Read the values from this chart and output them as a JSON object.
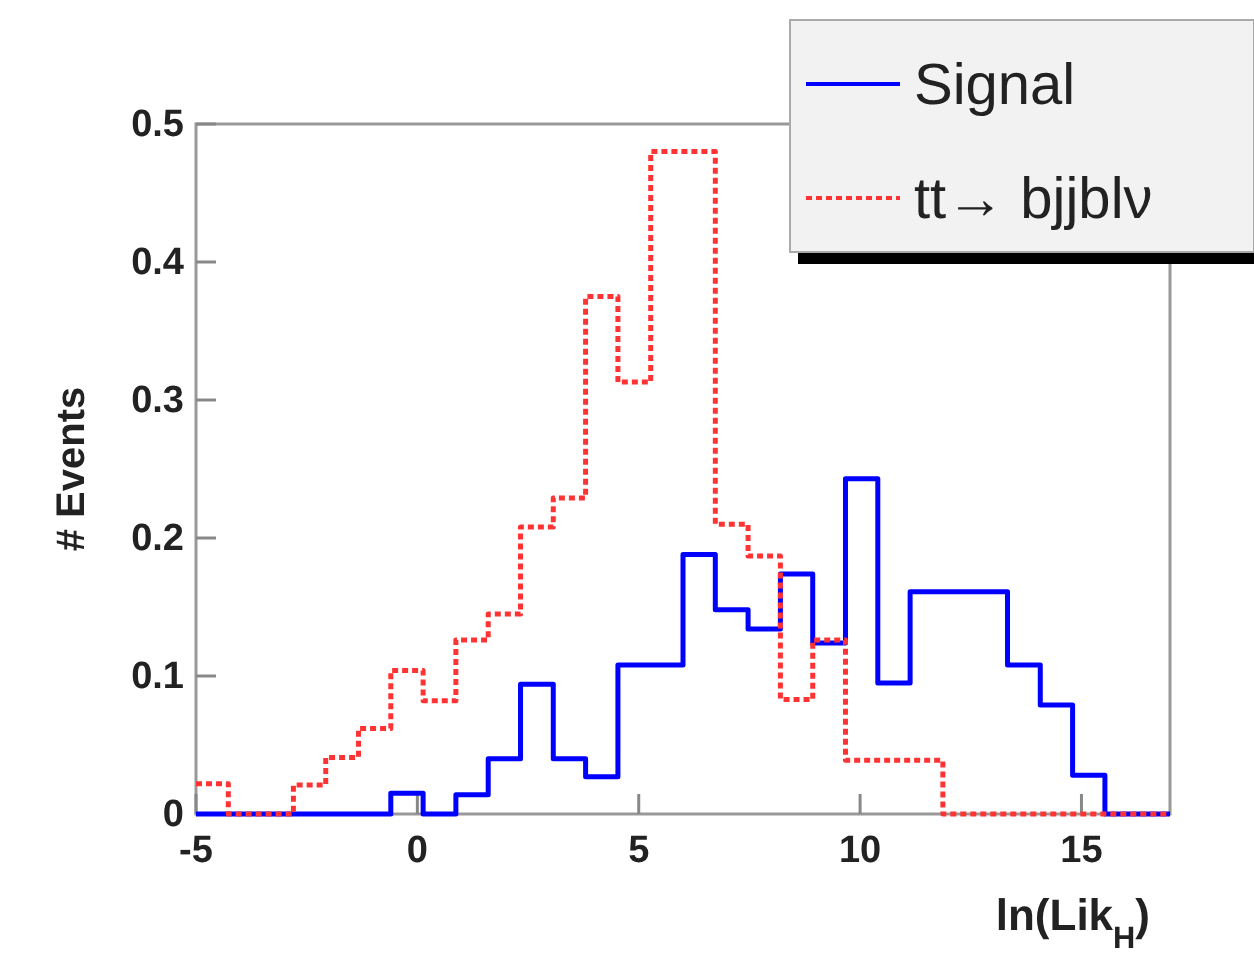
{
  "chart_data": {
    "type": "histogram",
    "xlabel": "ln(Lik$_{H}$)",
    "ylabel": "# Events",
    "bins": [
      -5,
      -4.27,
      -3.53,
      -2.8,
      -2.07,
      -1.33,
      -0.6,
      0.13,
      0.87,
      1.6,
      2.33,
      3.07,
      3.8,
      4.53,
      5.27,
      6,
      6.73,
      7.47,
      8.2,
      8.93,
      9.67,
      10.4,
      11.13,
      11.87,
      12.6,
      13.33,
      14.07,
      14.8,
      15.53,
      16.27,
      17
    ],
    "series": [
      {
        "name": "Signal",
        "color": "#0000ff",
        "line_style": "solid",
        "values": [
          0,
          0,
          0,
          0,
          0,
          0,
          0.015,
          0,
          0.014,
          0.04,
          0.094,
          0.04,
          0.027,
          0.108,
          0.108,
          0.188,
          0.148,
          0.134,
          0.174,
          0.124,
          0.243,
          0.095,
          0.161,
          0.161,
          0.161,
          0.108,
          0.079,
          0.028,
          0,
          0
        ]
      },
      {
        "name": "tt→ bjjblν",
        "color": "#ff3333",
        "line_style": "dotted",
        "values": [
          0.022,
          0,
          0,
          0.021,
          0.041,
          0.062,
          0.104,
          0.082,
          0.126,
          0.145,
          0.208,
          0.229,
          0.375,
          0.313,
          0.48,
          0.48,
          0.21,
          0.187,
          0.083,
          0.126,
          0.039,
          0.039,
          0.039,
          0,
          0,
          0,
          0,
          0,
          0,
          0
        ]
      }
    ],
    "xlim": [
      -5,
      17
    ],
    "ylim": [
      0,
      0.5
    ],
    "xticks": [
      -5,
      0,
      5,
      10,
      15
    ],
    "yticks": [
      0,
      0.1,
      0.2,
      0.3,
      0.4,
      0.5
    ],
    "legend": "top right",
    "grid": false
  }
}
